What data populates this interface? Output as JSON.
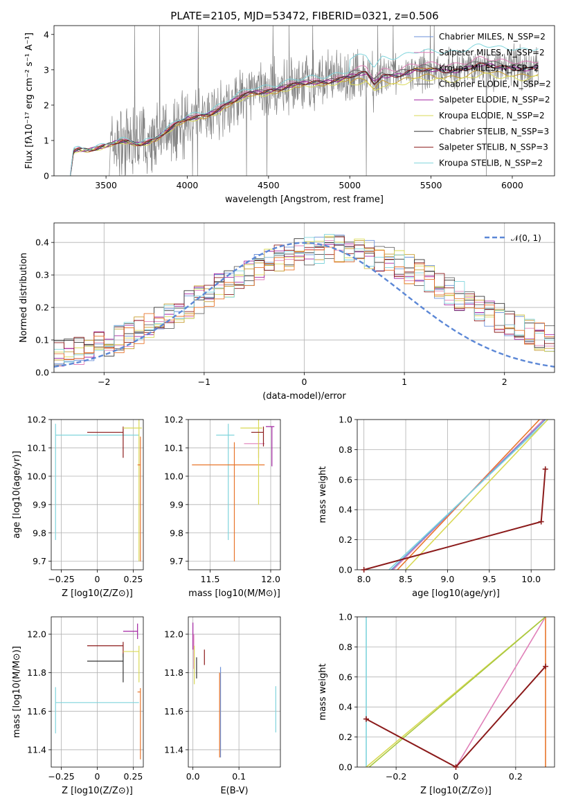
{
  "figure": {
    "title": "PLATE=2105, MJD=53472, FIBERID=0321, z=0.506"
  },
  "chart_data": [
    {
      "id": "spectrum",
      "type": "line",
      "xlabel": "wavelength [Angstrom, rest frame]",
      "ylabel": "Flux [fλ10⁻¹⁷ erg cm⁻² s⁻¹ A⁻¹]",
      "xlim": [
        3180,
        6260
      ],
      "ylim": [
        0,
        4.25
      ],
      "xticks": [
        3500,
        4000,
        4500,
        5000,
        5500,
        6000
      ],
      "yticks": [
        0,
        1,
        2,
        3,
        4
      ],
      "legend_position": "right",
      "series": [
        {
          "name": "Chabrier MILES, N_SSP=2",
          "color": "#6a8fd8",
          "offset": 0.0
        },
        {
          "name": "Salpeter MILES, N_SSP=2",
          "color": "#e07fb8",
          "offset": 0.02
        },
        {
          "name": "Kroupa MILES, N_SSP=2",
          "color": "#c59a2b",
          "offset": -0.02
        },
        {
          "name": "Chabrier ELODIE, N_SSP=2",
          "color": "#666666",
          "offset": 0.01
        },
        {
          "name": "Salpeter ELODIE, N_SSP=2",
          "color": "#a020a0",
          "offset": 0.0
        },
        {
          "name": "Kroupa ELODIE, N_SSP=2",
          "color": "#d9d955",
          "offset": -0.03
        },
        {
          "name": "Chabrier STELIB, N_SSP=3",
          "color": "#333333",
          "offset": 0.0
        },
        {
          "name": "Salpeter STELIB, N_SSP=3",
          "color": "#8b1a1a",
          "offset": 0.0
        },
        {
          "name": "Kroupa STELIB, N_SSP=2",
          "color": "#7fd4dc",
          "offset": 0.06
        }
      ],
      "model_x": [
        3280,
        3300,
        3330,
        3400,
        3500,
        3600,
        3700,
        3800,
        3900,
        3950,
        4000,
        4100,
        4200,
        4300,
        4400,
        4500,
        4600,
        4700,
        4800,
        4900,
        5000,
        5100,
        5150,
        5200,
        5300,
        5400,
        5500,
        5600,
        5700,
        5800,
        5900,
        6000,
        6100
      ],
      "model_y": [
        0.0,
        0.75,
        0.8,
        0.78,
        0.8,
        0.95,
        0.95,
        1.05,
        1.3,
        1.45,
        1.6,
        1.75,
        1.9,
        2.1,
        2.35,
        2.45,
        2.5,
        2.55,
        2.65,
        2.75,
        2.8,
        2.85,
        2.6,
        2.85,
        2.9,
        2.95,
        2.95,
        3.0,
        3.05,
        3.1,
        3.05,
        3.1,
        3.05
      ],
      "data_color": "#7f7f7f"
    },
    {
      "id": "residuals",
      "type": "line",
      "xlabel": "(data-model)/error",
      "ylabel": "Normed distribution",
      "xlim": [
        -2.5,
        2.5
      ],
      "ylim": [
        0,
        0.46
      ],
      "xticks": [
        -2,
        -1,
        0,
        1,
        2
      ],
      "yticks": [
        0.0,
        0.1,
        0.2,
        0.3,
        0.4
      ],
      "legend": "𝒩(0, 1)",
      "legend_position": "top-right",
      "normal_color": "#5b87d6"
    },
    {
      "id": "age_vs_Z",
      "type": "scatter",
      "xlabel": "Z [log10(Z/Z⊙)]",
      "ylabel": "age  [log10(age/yr)]",
      "xlim": [
        -0.32,
        0.32
      ],
      "ylim": [
        9.67,
        10.2
      ],
      "xticks": [
        -0.25,
        0.0,
        0.25
      ],
      "yticks": [
        9.7,
        9.8,
        9.9,
        10.0,
        10.1,
        10.2
      ],
      "errorbars": [
        {
          "color": "#7fd4dc",
          "x": -0.29,
          "xerr": [
            0.0,
            0.58
          ],
          "y": 10.145,
          "yerr": [
            0.37,
            0.04
          ]
        },
        {
          "color": "#8b1a1a",
          "x": 0.18,
          "xerr": [
            0.25,
            0.0
          ],
          "y": 10.155,
          "yerr": [
            0.09,
            0.02
          ]
        },
        {
          "color": "#d9d955",
          "x": 0.29,
          "xerr": [
            0.11,
            0.02
          ],
          "y": 10.17,
          "yerr": [
            0.47,
            0.03
          ]
        },
        {
          "color": "#e8742a",
          "x": 0.3,
          "xerr": [
            0.02,
            0.0
          ],
          "y": 10.04,
          "yerr": [
            0.34,
            0.1
          ]
        }
      ]
    },
    {
      "id": "age_vs_mass",
      "type": "scatter",
      "xlabel": "mass [log10(M/M⊙)]",
      "ylabel": "",
      "xlim": [
        11.32,
        12.08
      ],
      "ylim": [
        9.67,
        10.2
      ],
      "xticks": [
        11.5,
        12.0
      ],
      "yticks": [
        9.7,
        9.8,
        9.9,
        10.0,
        10.1,
        10.2
      ],
      "errorbars": [
        {
          "color": "#7fd4dc",
          "x": 11.65,
          "xerr": [
            0.1,
            0.05
          ],
          "y": 10.145,
          "yerr": [
            0.37,
            0.04
          ]
        },
        {
          "color": "#e8742a",
          "x": 11.7,
          "xerr": [
            0.35,
            0.25
          ],
          "y": 10.04,
          "yerr": [
            0.34,
            0.08
          ]
        },
        {
          "color": "#e07fb8",
          "x": 11.9,
          "xerr": [
            0.12,
            0.05
          ],
          "y": 10.115,
          "yerr": [
            0.05,
            0.05
          ]
        },
        {
          "color": "#d9d955",
          "x": 11.9,
          "xerr": [
            0.15,
            0.03
          ],
          "y": 10.17,
          "yerr": [
            0.27,
            0.03
          ]
        },
        {
          "color": "#8b1a1a",
          "x": 11.94,
          "xerr": [
            0.1,
            0.0
          ],
          "y": 10.155,
          "yerr": [
            0.05,
            0.02
          ]
        },
        {
          "color": "#a020a0",
          "x": 12.01,
          "xerr": [
            0.05,
            0.02
          ],
          "y": 10.175,
          "yerr": [
            0.14,
            0.0
          ]
        }
      ]
    },
    {
      "id": "weight_vs_age",
      "type": "line",
      "xlabel": "age  [log10(age/yr)]",
      "ylabel": "mass weight",
      "xlim": [
        7.92,
        10.28
      ],
      "ylim": [
        0,
        1.0
      ],
      "xticks": [
        8.0,
        8.5,
        9.0,
        9.5,
        10.0
      ],
      "yticks": [
        0.0,
        0.2,
        0.4,
        0.6,
        0.8,
        1.0
      ],
      "series": [
        {
          "color": "#e8742a",
          "x": [
            8.4,
            10.1
          ],
          "y": [
            0.0,
            1.0
          ]
        },
        {
          "color": "#e07fb8",
          "x": [
            8.35,
            10.15
          ],
          "y": [
            0.0,
            1.0
          ]
        },
        {
          "color": "#6a8fd8",
          "x": [
            8.33,
            10.17
          ],
          "y": [
            0.0,
            1.0
          ]
        },
        {
          "color": "#7fd4dc",
          "x": [
            8.3,
            10.2
          ],
          "y": [
            0.0,
            1.0
          ]
        },
        {
          "color": "#d9d955",
          "x": [
            8.5,
            10.2
          ],
          "y": [
            0.0,
            1.0
          ]
        },
        {
          "color": "#8b1a1a",
          "x": [
            8.0,
            10.12,
            10.17
          ],
          "y": [
            0.0,
            0.32,
            0.67
          ],
          "markers": true
        }
      ]
    },
    {
      "id": "mass_vs_Z",
      "type": "scatter",
      "xlabel": "Z [log10(Z/Z⊙)]",
      "ylabel": "mass [log10(M/M⊙)]",
      "xlim": [
        -0.32,
        0.32
      ],
      "ylim": [
        11.31,
        12.09
      ],
      "xticks": [
        -0.25,
        0.0,
        0.25
      ],
      "yticks": [
        11.4,
        11.6,
        11.8,
        12.0
      ],
      "errorbars": [
        {
          "color": "#7fd4dc",
          "x": -0.29,
          "xerr": [
            0.0,
            0.58
          ],
          "y": 11.645,
          "yerr": [
            0.16,
            0.08
          ]
        },
        {
          "color": "#a020a0",
          "x": 0.28,
          "xerr": [
            0.1,
            0.0
          ],
          "y": 12.015,
          "yerr": [
            0.04,
            0.04
          ]
        },
        {
          "color": "#8b1a1a",
          "x": 0.18,
          "xerr": [
            0.25,
            0.0
          ],
          "y": 11.94,
          "yerr": [
            0.06,
            0.02
          ]
        },
        {
          "color": "#d9d955",
          "x": 0.29,
          "xerr": [
            0.11,
            0.0
          ],
          "y": 11.91,
          "yerr": [
            0.16,
            0.03
          ]
        },
        {
          "color": "#333333",
          "x": 0.18,
          "xerr": [
            0.25,
            0.0
          ],
          "y": 11.86,
          "yerr": [
            0.11,
            0.04
          ]
        },
        {
          "color": "#e8742a",
          "x": 0.3,
          "xerr": [
            0.02,
            0.0
          ],
          "y": 11.7,
          "yerr": [
            0.35,
            0.02
          ]
        }
      ]
    },
    {
      "id": "mass_vs_ebv",
      "type": "scatter",
      "xlabel": "E(B-V)",
      "ylabel": "",
      "xlim": [
        -0.01,
        0.19
      ],
      "ylim": [
        11.31,
        12.09
      ],
      "xticks": [
        0.0,
        0.1
      ],
      "yticks": [
        11.4,
        11.6,
        11.8,
        12.0
      ],
      "errorbars": [
        {
          "color": "#a020a0",
          "x": 0.0,
          "y": 12.0,
          "yerr": [
            0.08,
            0.06
          ]
        },
        {
          "color": "#e07fb8",
          "x": 0.002,
          "y": 11.95,
          "yerr": [
            0.13,
            0.05
          ]
        },
        {
          "color": "#d9d955",
          "x": 0.003,
          "y": 11.88,
          "yerr": [
            0.14,
            0.06
          ]
        },
        {
          "color": "#333333",
          "x": 0.008,
          "y": 11.83,
          "yerr": [
            0.06,
            0.05
          ]
        },
        {
          "color": "#8b1a1a",
          "x": 0.025,
          "y": 11.87,
          "yerr": [
            0.03,
            0.05
          ]
        },
        {
          "color": "#6a8fd8",
          "x": 0.06,
          "y": 11.6,
          "yerr": [
            0.24,
            0.23
          ]
        },
        {
          "color": "#e8742a",
          "x": 0.058,
          "y": 11.58,
          "yerr": [
            0.22,
            0.22
          ]
        },
        {
          "color": "#7fd4dc",
          "x": 0.18,
          "y": 11.61,
          "yerr": [
            0.12,
            0.12
          ]
        }
      ]
    },
    {
      "id": "weight_vs_Z",
      "type": "line",
      "xlabel": "Z [log10(Z/Z⊙)]",
      "ylabel": "mass weight",
      "xlim": [
        -0.33,
        0.33
      ],
      "ylim": [
        0,
        1.0
      ],
      "xticks": [
        -0.2,
        0.0,
        0.2
      ],
      "yticks": [
        0.0,
        0.2,
        0.4,
        0.6,
        0.8,
        1.0
      ],
      "series": [
        {
          "color": "#7fd4dc",
          "x": [
            -0.3,
            -0.3
          ],
          "y": [
            0.0,
            1.0
          ]
        },
        {
          "color": "#e8742a",
          "x": [
            0.3,
            0.3
          ],
          "y": [
            0.0,
            1.0
          ]
        },
        {
          "color": "#e07fb8",
          "x": [
            0.0,
            0.3
          ],
          "y": [
            0.0,
            1.0
          ]
        },
        {
          "color": "#d9d955",
          "x": [
            -0.3,
            0.3
          ],
          "y": [
            0.0,
            1.0
          ]
        },
        {
          "color": "#a8c840",
          "x": [
            -0.29,
            0.3
          ],
          "y": [
            0.0,
            1.0
          ]
        },
        {
          "color": "#8b1a1a",
          "x": [
            -0.3,
            0.0,
            0.3
          ],
          "y": [
            0.32,
            0.0,
            0.67
          ],
          "markers": true
        }
      ]
    }
  ]
}
